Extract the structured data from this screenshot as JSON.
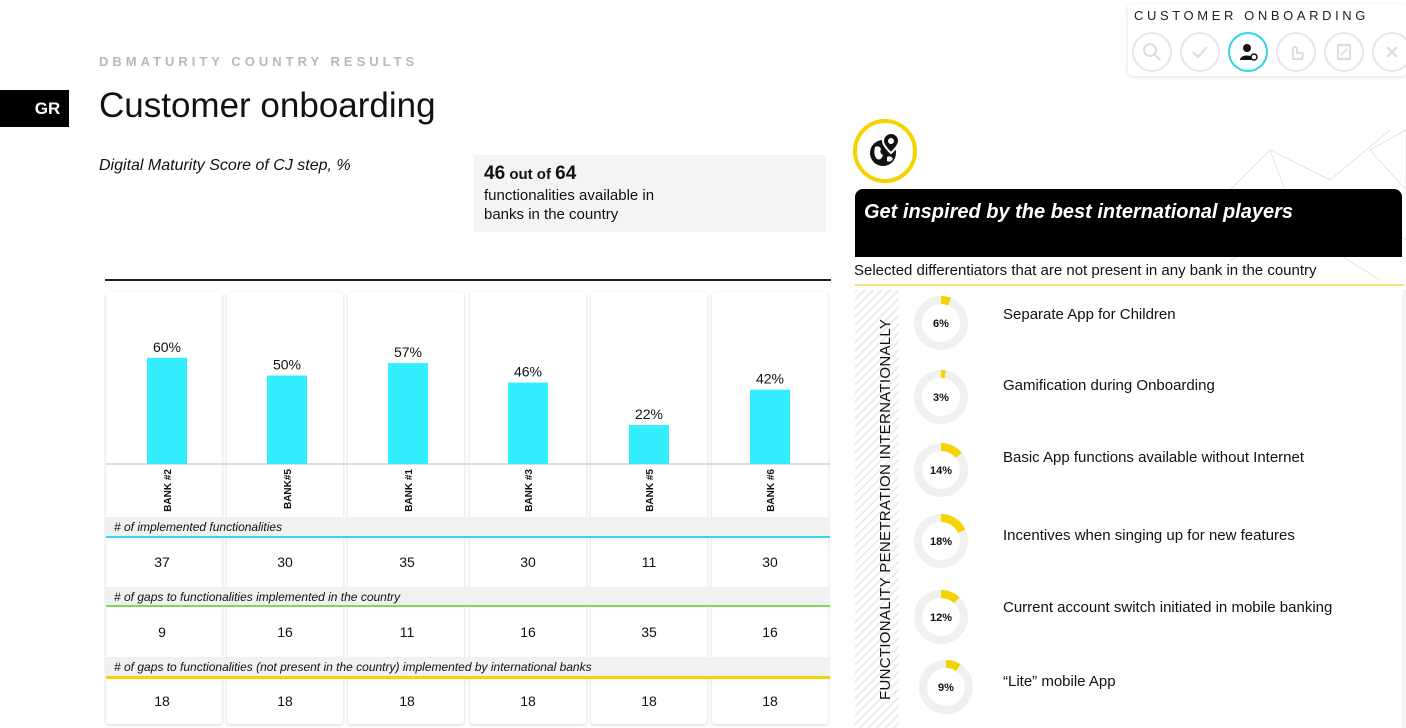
{
  "header": {
    "section_caption": "DBMATURITY COUNTRY RESULTS",
    "country_code": "GR",
    "title": "Customer onboarding",
    "subtitle": "Digital Maturity Score of CJ step, %"
  },
  "toolbar": {
    "title": "CUSTOMER ONBOARDING",
    "icons": [
      "search-icon",
      "check-icon",
      "user-gear-icon",
      "hand-icon",
      "document-icon",
      "close-icon"
    ],
    "active_icon": "user-gear-icon",
    "accent": "#2fd4e8"
  },
  "summary": {
    "available": "46",
    "out_of_label": "out of",
    "total": "64",
    "description": "functionalities available in banks in the country"
  },
  "chart_data": {
    "type": "bar",
    "categories": [
      "BANK #2",
      "BANK#5",
      "BANK #1",
      "BANK #3",
      "BANK #5",
      "BANK #6"
    ],
    "values": [
      60,
      50,
      57,
      46,
      22,
      42
    ],
    "value_labels": [
      "60%",
      "50%",
      "57%",
      "46%",
      "22%",
      "42%"
    ],
    "ylim": [
      0,
      100
    ],
    "bar_color": "#33eeff",
    "title": "",
    "xlabel": "",
    "ylabel": ""
  },
  "table": {
    "rows": [
      {
        "label": "# of implemented functionalities",
        "line_color": "#33d6ee",
        "values": [
          "37",
          "30",
          "35",
          "30",
          "11",
          "30"
        ]
      },
      {
        "label": "# of gaps to functionalities implemented in the country",
        "line_color": "#7ed957",
        "values": [
          "9",
          "16",
          "11",
          "16",
          "35",
          "16"
        ]
      },
      {
        "label": "# of gaps to functionalities (not present in the country) implemented by international banks",
        "line_color": "#f5d300",
        "values": [
          "18",
          "18",
          "18",
          "18",
          "18",
          "18"
        ]
      }
    ]
  },
  "inspiration": {
    "title": "Get inspired by the best international players",
    "subtitle": "Selected differentiators that are not present in any bank in the country",
    "axis_label": "FUNCTIONALITY PENETRATION INTERNATIONALLY",
    "accent": "#f5d300",
    "icon": "globe-pin-icon",
    "items": [
      {
        "percent": 6,
        "percent_label": "6%",
        "text": "Separate App for Children"
      },
      {
        "percent": 3,
        "percent_label": "3%",
        "text": "Gamification during Onboarding"
      },
      {
        "percent": 14,
        "percent_label": "14%",
        "text": "Basic App functions available without Internet"
      },
      {
        "percent": 18,
        "percent_label": "18%",
        "text": "Incentives when singing up for new features"
      },
      {
        "percent": 12,
        "percent_label": "12%",
        "text": "Current account switch initiated in mobile banking"
      },
      {
        "percent": 9,
        "percent_label": "9%",
        "text": "“Lite” mobile App"
      }
    ]
  }
}
